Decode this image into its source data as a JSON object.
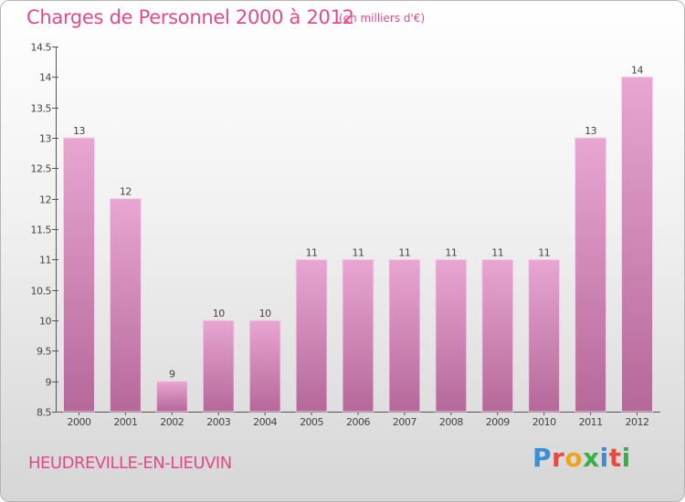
{
  "header": {
    "title": "Charges de Personnel 2000 à 2012",
    "subtitle": "(en milliers d'€)"
  },
  "footer": {
    "city": "HEUDREVILLE-EN-LIEUVIN",
    "logo_letters": [
      "P",
      "r",
      "o",
      "x",
      "i",
      "t",
      "i"
    ],
    "logo_colors": [
      "#3c8fd6",
      "#e94a3c",
      "#f2a31b",
      "#38b04a",
      "#3c8fd6",
      "#e94a3c",
      "#38b04a"
    ]
  },
  "colors": {
    "title": "#e24a8a",
    "bar_top": "#e8a6d2",
    "bar_bottom": "#b5689a",
    "axis": "#555555"
  },
  "chart_data": {
    "type": "bar",
    "categories": [
      "2000",
      "2001",
      "2002",
      "2003",
      "2004",
      "2005",
      "2006",
      "2007",
      "2008",
      "2009",
      "2010",
      "2011",
      "2012"
    ],
    "values": [
      13,
      12,
      9,
      10,
      10,
      11,
      11,
      11,
      11,
      11,
      11,
      13,
      14
    ],
    "data_labels": [
      "13",
      "12",
      "9",
      "10",
      "10",
      "11",
      "11",
      "11",
      "11",
      "11",
      "11",
      "13",
      "14"
    ],
    "y_ticks": [
      8.5,
      9,
      9.5,
      10,
      10.5,
      11,
      11.5,
      12,
      12.5,
      13,
      13.5,
      14,
      14.5
    ],
    "y_tick_labels": [
      "8.5",
      "9",
      "9.5",
      "10",
      "10.5",
      "11",
      "11.5",
      "12",
      "12.5",
      "13",
      "13.5",
      "14",
      "14.5"
    ],
    "ylim": [
      8.5,
      14.5
    ],
    "grid": false
  }
}
